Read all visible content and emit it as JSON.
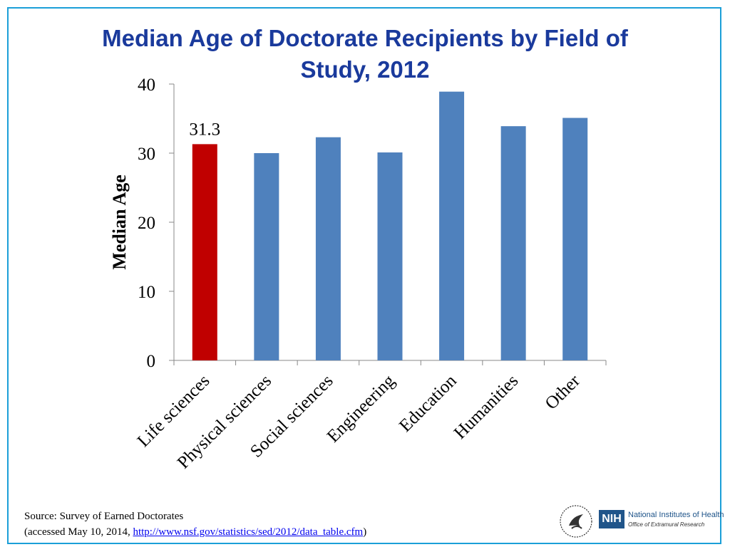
{
  "chart_data": {
    "type": "bar",
    "title": "Median Age of Doctorate Recipients by Field of Study, 2012",
    "ylabel": "Median Age",
    "xlabel": "",
    "ylim": [
      0,
      40
    ],
    "yticks": [
      0,
      10,
      20,
      30,
      40
    ],
    "categories": [
      "Life sciences",
      "Physical sciences",
      "Social sciences",
      "Engineering",
      "Education",
      "Humanities",
      "Other"
    ],
    "values": [
      31.3,
      30.0,
      32.3,
      30.1,
      38.9,
      33.9,
      35.1
    ],
    "data_labels": {
      "Life sciences": "31.3"
    },
    "highlight_category": "Life sciences",
    "colors": {
      "highlight": "#c00000",
      "default": "#4f81bd"
    },
    "grid": false,
    "legend": "none"
  },
  "footer": {
    "source_line1": "Source: Survey of Earned Doctorates",
    "source_prefix": "(accessed May 10, 2014, ",
    "source_link": "http://www.nsf.gov/statistics/sed/2012/data_table.cfm",
    "source_suffix": ")"
  },
  "logos": {
    "hhs_icon": "hhs-eagle-icon",
    "nih_abbr": "NIH",
    "nih_name": "National Institutes of Health",
    "nih_office": "Office of Extramural Research"
  }
}
